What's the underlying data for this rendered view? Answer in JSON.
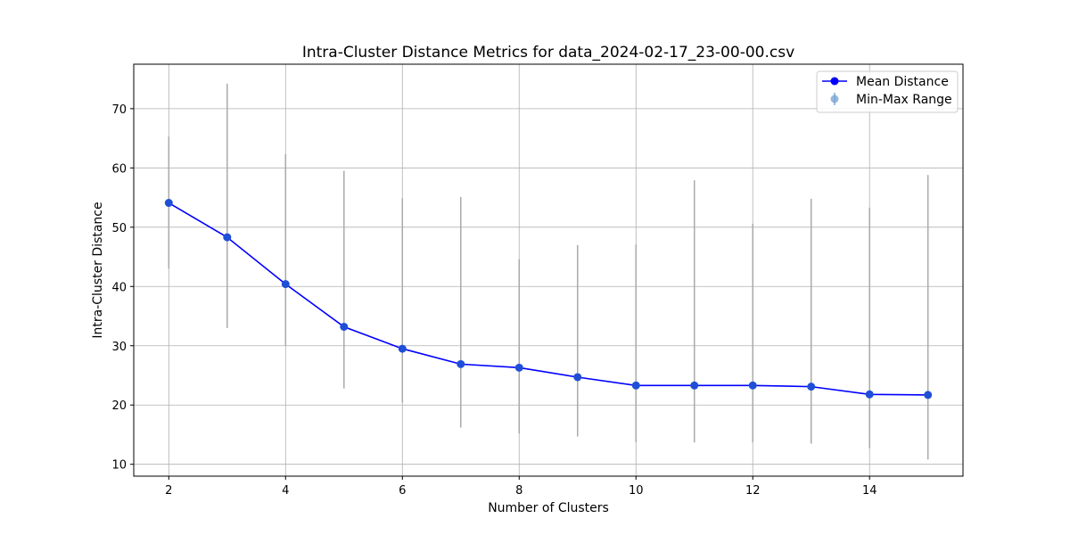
{
  "chart_data": {
    "type": "line",
    "title": "Intra-Cluster Distance Metrics for data_2024-02-17_23-00-00.csv",
    "xlabel": "Number of Clusters",
    "ylabel": "Intra-Cluster Distance",
    "xlim": [
      1.4,
      15.6
    ],
    "ylim": [
      8.0,
      77.5
    ],
    "xticks": [
      2,
      4,
      6,
      8,
      10,
      12,
      14
    ],
    "yticks": [
      10,
      20,
      30,
      40,
      50,
      60,
      70
    ],
    "grid": true,
    "legend_position": "top-right",
    "x": [
      2,
      3,
      4,
      5,
      6,
      7,
      8,
      9,
      10,
      11,
      12,
      13,
      14,
      15
    ],
    "series": [
      {
        "name": "Mean Distance",
        "kind": "line-marker",
        "color": "#0000ff",
        "marker_color": "#1f4fd6",
        "values": [
          54.1,
          48.3,
          40.4,
          33.2,
          29.5,
          26.9,
          26.3,
          24.7,
          23.3,
          23.3,
          23.3,
          23.1,
          21.8,
          21.7
        ]
      },
      {
        "name": "Min-Max Range",
        "kind": "errorbar",
        "color": "#aaaaaa",
        "legend_marker_color": "#7aa6d6",
        "min": [
          43.0,
          33.0,
          30.0,
          22.8,
          20.4,
          16.2,
          15.2,
          14.7,
          13.7,
          13.7,
          13.7,
          13.5,
          12.7,
          10.8
        ],
        "max": [
          65.3,
          74.2,
          62.3,
          59.5,
          54.9,
          55.1,
          44.6,
          47.0,
          47.1,
          57.9,
          50.6,
          54.8,
          53.3,
          58.8
        ]
      }
    ]
  }
}
